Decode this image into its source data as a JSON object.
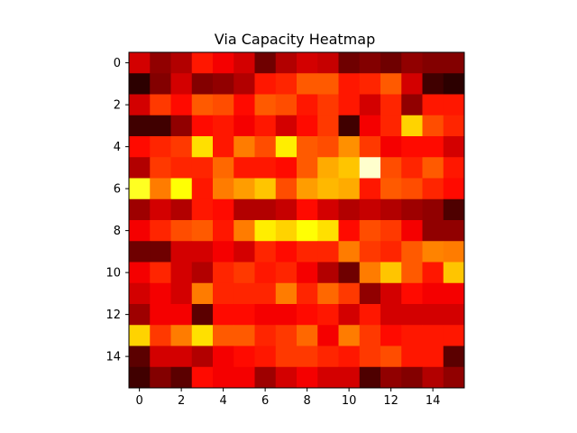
{
  "chart_data": {
    "type": "heatmap",
    "title": "Via Capacity Heatmap",
    "xlabel": "",
    "ylabel": "",
    "colormap": "hot",
    "color_range": [
      0,
      1
    ],
    "x_ticks": [
      0,
      2,
      4,
      6,
      8,
      10,
      12,
      14
    ],
    "y_ticks": [
      0,
      2,
      4,
      6,
      8,
      10,
      12,
      14
    ],
    "grid": false,
    "legend": "none",
    "rows": 16,
    "cols": 16,
    "values": [
      [
        0.3,
        0.2,
        0.25,
        0.4,
        0.35,
        0.3,
        0.15,
        0.25,
        0.3,
        0.28,
        0.15,
        0.18,
        0.15,
        0.2,
        0.18,
        0.18
      ],
      [
        0.05,
        0.18,
        0.3,
        0.18,
        0.2,
        0.25,
        0.4,
        0.42,
        0.5,
        0.5,
        0.4,
        0.42,
        0.5,
        0.3,
        0.08,
        0.05
      ],
      [
        0.3,
        0.45,
        0.38,
        0.5,
        0.48,
        0.38,
        0.5,
        0.48,
        0.4,
        0.45,
        0.4,
        0.3,
        0.42,
        0.2,
        0.4,
        0.4
      ],
      [
        0.08,
        0.08,
        0.2,
        0.38,
        0.4,
        0.35,
        0.4,
        0.3,
        0.38,
        0.45,
        0.08,
        0.35,
        0.42,
        0.68,
        0.48,
        0.42
      ],
      [
        0.38,
        0.42,
        0.45,
        0.7,
        0.4,
        0.55,
        0.48,
        0.72,
        0.5,
        0.48,
        0.58,
        0.45,
        0.35,
        0.38,
        0.38,
        0.3
      ],
      [
        0.25,
        0.45,
        0.42,
        0.42,
        0.52,
        0.4,
        0.4,
        0.38,
        0.5,
        0.62,
        0.66,
        0.95,
        0.48,
        0.42,
        0.5,
        0.4
      ],
      [
        0.78,
        0.55,
        0.75,
        0.4,
        0.55,
        0.6,
        0.66,
        0.48,
        0.6,
        0.64,
        0.62,
        0.4,
        0.5,
        0.48,
        0.42,
        0.38
      ],
      [
        0.22,
        0.3,
        0.25,
        0.4,
        0.38,
        0.25,
        0.25,
        0.28,
        0.38,
        0.3,
        0.25,
        0.28,
        0.25,
        0.22,
        0.2,
        0.1
      ],
      [
        0.35,
        0.42,
        0.48,
        0.5,
        0.4,
        0.55,
        0.72,
        0.68,
        0.75,
        0.7,
        0.38,
        0.48,
        0.45,
        0.35,
        0.2,
        0.2
      ],
      [
        0.15,
        0.15,
        0.3,
        0.3,
        0.35,
        0.3,
        0.42,
        0.38,
        0.42,
        0.42,
        0.55,
        0.45,
        0.42,
        0.5,
        0.56,
        0.55
      ],
      [
        0.35,
        0.42,
        0.3,
        0.25,
        0.42,
        0.45,
        0.4,
        0.42,
        0.35,
        0.25,
        0.15,
        0.55,
        0.66,
        0.5,
        0.4,
        0.66
      ],
      [
        0.3,
        0.35,
        0.3,
        0.55,
        0.42,
        0.42,
        0.42,
        0.55,
        0.42,
        0.52,
        0.45,
        0.2,
        0.3,
        0.38,
        0.35,
        0.35
      ],
      [
        0.22,
        0.35,
        0.35,
        0.12,
        0.38,
        0.38,
        0.35,
        0.35,
        0.38,
        0.4,
        0.3,
        0.4,
        0.3,
        0.3,
        0.3,
        0.3
      ],
      [
        0.68,
        0.45,
        0.55,
        0.7,
        0.5,
        0.5,
        0.42,
        0.45,
        0.52,
        0.35,
        0.55,
        0.45,
        0.38,
        0.4,
        0.4,
        0.4
      ],
      [
        0.12,
        0.3,
        0.3,
        0.25,
        0.35,
        0.38,
        0.4,
        0.45,
        0.45,
        0.42,
        0.4,
        0.45,
        0.48,
        0.4,
        0.4,
        0.12
      ],
      [
        0.08,
        0.18,
        0.12,
        0.38,
        0.35,
        0.35,
        0.22,
        0.3,
        0.35,
        0.3,
        0.3,
        0.1,
        0.2,
        0.18,
        0.25,
        0.2
      ]
    ]
  }
}
